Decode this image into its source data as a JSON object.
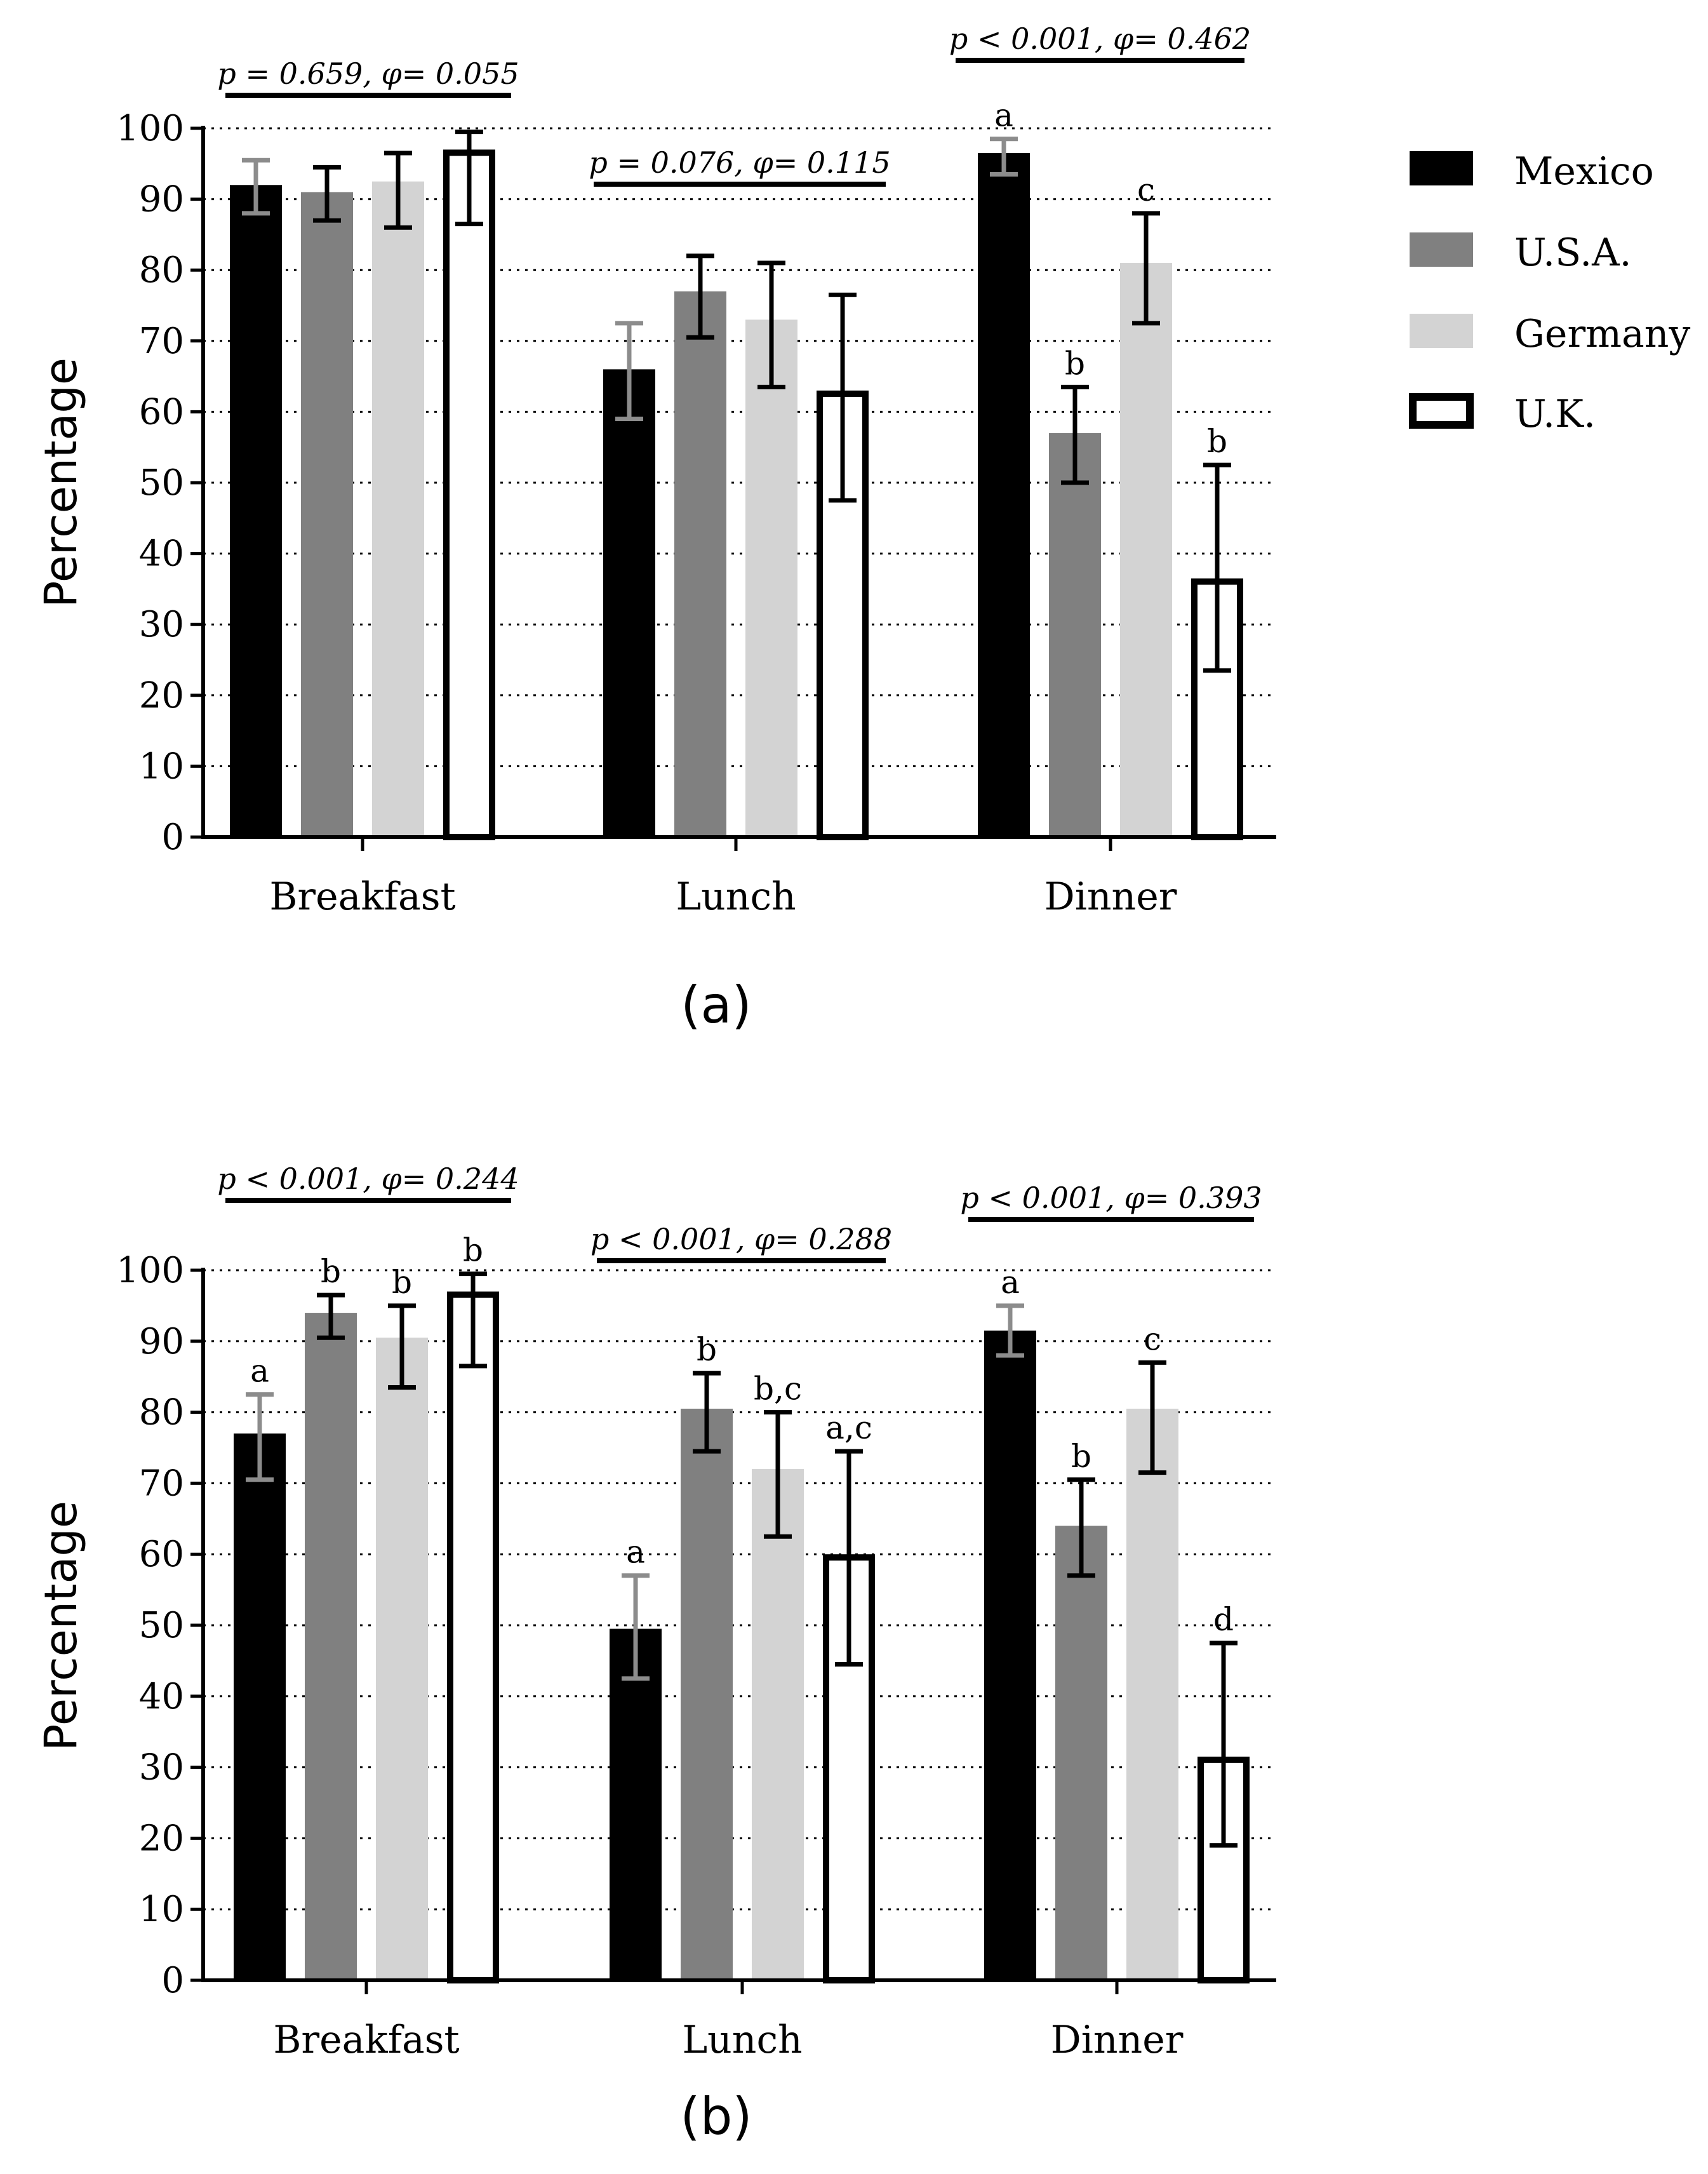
{
  "legend": [
    {
      "name": "Mexico",
      "fill": "#000000"
    },
    {
      "name": "U.S.A.",
      "fill": "#808080"
    },
    {
      "name": "Germany",
      "fill": "#d3d3d3"
    },
    {
      "name": "U.K.",
      "fill": "#ffffff"
    }
  ],
  "chart_data": [
    {
      "type": "bar",
      "panel_label": "(a)",
      "ylabel": "Percentage",
      "xlabel": "",
      "ylim": [
        0,
        100
      ],
      "yticks": [
        "0",
        "10",
        "20",
        "30",
        "40",
        "50",
        "60",
        "70",
        "80",
        "90",
        "100"
      ],
      "categories": [
        "Breakfast",
        "Lunch",
        "Dinner"
      ],
      "series": [
        {
          "name": "Mexico",
          "values": [
            92,
            66,
            96.5
          ],
          "err_low": [
            88,
            59,
            93.5
          ],
          "err_high": [
            95.5,
            72.5,
            98.5
          ],
          "letters": [
            "",
            "",
            "a"
          ]
        },
        {
          "name": "U.S.A.",
          "values": [
            91,
            77,
            57
          ],
          "err_low": [
            87,
            70.5,
            50
          ],
          "err_high": [
            94.5,
            82,
            63.5
          ],
          "letters": [
            "",
            "",
            "b"
          ]
        },
        {
          "name": "Germany",
          "values": [
            92.5,
            73,
            81
          ],
          "err_low": [
            86,
            63.5,
            72.5
          ],
          "err_high": [
            96.5,
            81,
            88
          ],
          "letters": [
            "",
            "",
            "c"
          ]
        },
        {
          "name": "U.K.",
          "values": [
            97,
            63,
            36.5
          ],
          "err_low": [
            86.5,
            47.5,
            23.5
          ],
          "err_high": [
            99.5,
            76.5,
            52.5
          ],
          "letters": [
            "",
            "",
            "b"
          ]
        }
      ],
      "significance": [
        "p = 0.659, φ= 0.055",
        "p = 0.076, φ= 0.115",
        "p < 0.001, φ= 0.462"
      ]
    },
    {
      "type": "bar",
      "panel_label": "(b)",
      "ylabel": "Percentage",
      "xlabel": "",
      "ylim": [
        0,
        100
      ],
      "yticks": [
        "0",
        "10",
        "20",
        "30",
        "40",
        "50",
        "60",
        "70",
        "80",
        "90",
        "100"
      ],
      "categories": [
        "Breakfast",
        "Lunch",
        "Dinner"
      ],
      "series": [
        {
          "name": "Mexico",
          "values": [
            77,
            49.5,
            91.5
          ],
          "err_low": [
            70.5,
            42.5,
            88
          ],
          "err_high": [
            82.5,
            57,
            95
          ],
          "letters": [
            "a",
            "a",
            "a"
          ]
        },
        {
          "name": "U.S.A.",
          "values": [
            94,
            80.5,
            64
          ],
          "err_low": [
            90.5,
            74.5,
            57
          ],
          "err_high": [
            96.5,
            85.5,
            70.5
          ],
          "letters": [
            "b",
            "b",
            "b"
          ]
        },
        {
          "name": "Germany",
          "values": [
            90.5,
            72,
            80.5
          ],
          "err_low": [
            83.5,
            62.5,
            71.5
          ],
          "err_high": [
            95,
            80,
            87
          ],
          "letters": [
            "b",
            "b,c",
            "c"
          ]
        },
        {
          "name": "U.K.",
          "values": [
            97,
            60,
            31.5
          ],
          "err_low": [
            86.5,
            44.5,
            19
          ],
          "err_high": [
            99.5,
            74.5,
            47.5
          ],
          "letters": [
            "b",
            "a,c",
            "d"
          ]
        }
      ],
      "significance": [
        "p < 0.001, φ= 0.244",
        "p < 0.001, φ= 0.288",
        "p < 0.001, φ= 0.393"
      ]
    }
  ]
}
